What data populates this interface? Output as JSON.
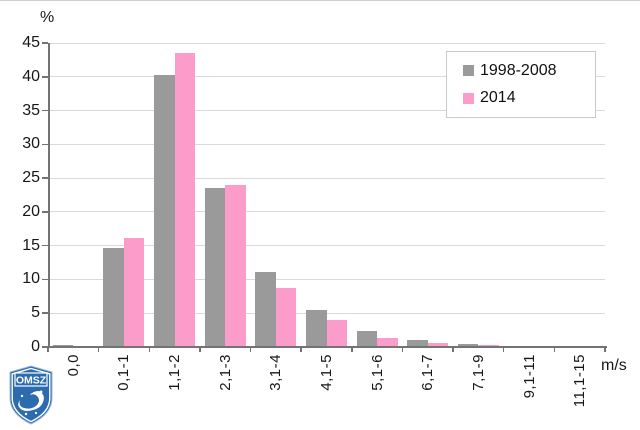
{
  "chart_data": {
    "type": "bar",
    "title": "",
    "ylabel": "%",
    "xlabel": "m/s",
    "ylim": [
      0,
      45
    ],
    "ytick_step": 5,
    "yticks": [
      0,
      5,
      10,
      15,
      20,
      25,
      30,
      35,
      40,
      45
    ],
    "grid": true,
    "legend_position": "top-right",
    "categories": [
      "0,0",
      "0,1-1",
      "1,1-2",
      "2,1-3",
      "3,1-4",
      "4,1-5",
      "5,1-6",
      "6,1-7",
      "7,1-9",
      "9,1-11",
      "11,1-15"
    ],
    "series": [
      {
        "name": "1998-2008",
        "color": "#9a9a9a",
        "values": [
          0.3,
          14.7,
          40.2,
          23.6,
          11.1,
          5.5,
          2.4,
          1.0,
          0.5,
          0,
          0
        ]
      },
      {
        "name": "2014",
        "color": "#fc9ccb",
        "values": [
          0.1,
          16.2,
          43.5,
          24.0,
          8.7,
          4.0,
          1.4,
          0.6,
          0.3,
          0,
          0
        ]
      }
    ]
  },
  "colors": {
    "gridline": "#d9d9d9",
    "axis": "#737373",
    "legend_border": "#c9c9c9",
    "logo_blue": "#2b6bae"
  },
  "logo": {
    "text": "OMSZ"
  }
}
